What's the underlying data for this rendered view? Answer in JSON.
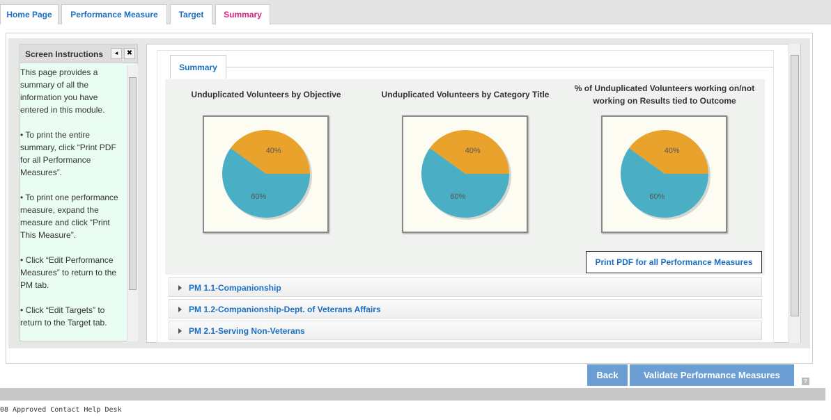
{
  "tabs": [
    "Home Page",
    "Performance Measure",
    "Target",
    "Summary"
  ],
  "instructions": {
    "title": "Screen Instructions",
    "paragraphs": [
      "This page provides a summary of all the information you have entered in this module.",
      "• To print the entire summary, click “Print PDF for all Performance Measures”.",
      "• To print one performance measure, expand the measure and click “Print This Measure”.",
      "• Click “Edit Performance Measures” to return to the PM tab.",
      "• Click “Edit Targets” to return to the Target tab."
    ]
  },
  "summary_tab": "Summary",
  "chart_data": [
    {
      "type": "pie",
      "title": "Unduplicated Volunteers by Objective",
      "values": [
        40,
        60
      ],
      "value_labels": [
        "40%",
        "60%"
      ],
      "colors": [
        "#e9a22c",
        "#4aafc4"
      ]
    },
    {
      "type": "pie",
      "title": "Unduplicated Volunteers by Category Title",
      "values": [
        40,
        60
      ],
      "value_labels": [
        "40%",
        "60%"
      ],
      "colors": [
        "#e9a22c",
        "#4aafc4"
      ]
    },
    {
      "type": "pie",
      "title": "% of Unduplicated Volunteers working on/not working on Results tied to Outcome",
      "values": [
        40,
        60
      ],
      "value_labels": [
        "40%",
        "60%"
      ],
      "colors": [
        "#e9a22c",
        "#4aafc4"
      ]
    }
  ],
  "print_button": "Print PDF for all Performance Measures",
  "measures": [
    "PM 1.1-Companionship",
    "PM 1.2-Companionship-Dept. of Veterans Affairs",
    "PM 2.1-Serving Non-Veterans"
  ],
  "buttons": [
    "Back",
    "Validate Performance Measures"
  ],
  "footer": "08 Approved Contact Help Desk"
}
